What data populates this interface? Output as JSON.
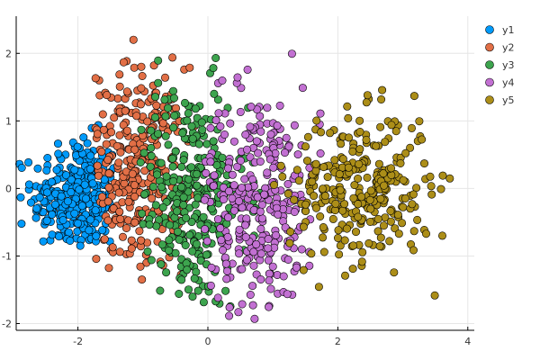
{
  "chart_data": {
    "type": "scatter",
    "title": "",
    "xlabel": "",
    "ylabel": "",
    "xlim": [
      -2.95,
      4.1
    ],
    "ylim": [
      -2.1,
      2.55
    ],
    "xticks": [
      -2,
      0,
      2,
      4
    ],
    "yticks": [
      -2,
      -1,
      0,
      1,
      2
    ],
    "x_tick_labels": [
      "-2",
      "0",
      "2",
      "4"
    ],
    "y_tick_labels": [
      "-2",
      "-1",
      "0",
      "1",
      "2"
    ],
    "grid": true,
    "legend_position": "top-right",
    "series": [
      {
        "name": "y1",
        "color": "#009AFA",
        "count": 300,
        "center": [
          -2.0,
          -0.15
        ],
        "spread": [
          0.35,
          0.45
        ],
        "xrange": [
          -2.95,
          -1.45
        ],
        "yrange": [
          -0.85,
          1.55
        ]
      },
      {
        "name": "y2",
        "color": "#E26F46",
        "count": 300,
        "center": [
          -1.1,
          0.3
        ],
        "spread": [
          0.38,
          0.75
        ],
        "xrange": [
          -1.75,
          -0.15
        ],
        "yrange": [
          -1.35,
          2.45
        ]
      },
      {
        "name": "y3",
        "color": "#3DA44E",
        "count": 300,
        "center": [
          -0.3,
          -0.15
        ],
        "spread": [
          0.45,
          0.85
        ],
        "xrange": [
          -1.05,
          0.95
        ],
        "yrange": [
          -1.85,
          2.4
        ]
      },
      {
        "name": "y4",
        "color": "#C270D2",
        "count": 300,
        "center": [
          0.75,
          -0.2
        ],
        "spread": [
          0.5,
          0.85
        ],
        "xrange": [
          -0.05,
          2.0
        ],
        "yrange": [
          -1.95,
          2.2
        ]
      },
      {
        "name": "y5",
        "color": "#AC8E18",
        "count": 300,
        "center": [
          2.35,
          0.0
        ],
        "spread": [
          0.55,
          0.55
        ],
        "xrange": [
          0.9,
          3.9
        ],
        "yrange": [
          -1.6,
          1.7
        ]
      }
    ]
  }
}
